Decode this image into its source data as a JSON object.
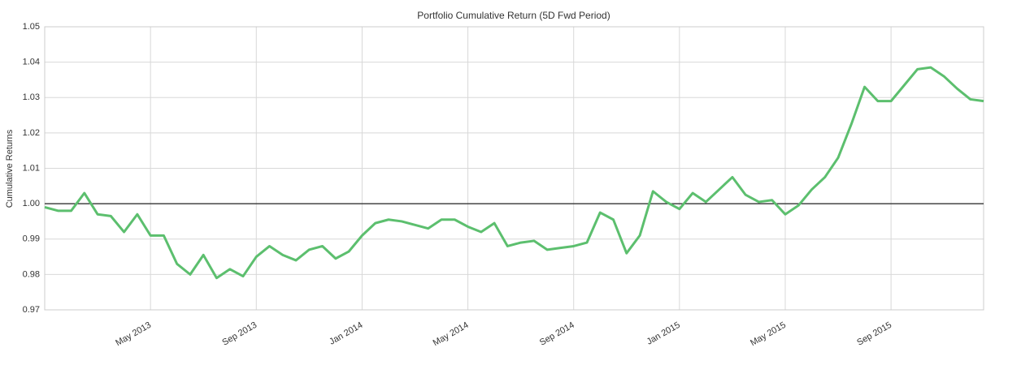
{
  "chart_data": {
    "type": "line",
    "title": "Portfolio Cumulative Return (5D Fwd Period)",
    "y_label": "Cumulative Returns",
    "categories": [
      "",
      null,
      null,
      null,
      null,
      null,
      null,
      null,
      "May 2013",
      null,
      null,
      null,
      null,
      null,
      null,
      null,
      "Sep 2013",
      null,
      null,
      null,
      null,
      null,
      null,
      null,
      "Jan 2014",
      null,
      null,
      null,
      null,
      null,
      null,
      null,
      "May 2014",
      null,
      null,
      null,
      null,
      null,
      null,
      null,
      "Sep 2014",
      null,
      null,
      null,
      null,
      null,
      null,
      null,
      "Jan 2015",
      null,
      null,
      null,
      null,
      null,
      null,
      null,
      "May 2015",
      null,
      null,
      null,
      null,
      null,
      null,
      null,
      "Sep 2015",
      null,
      null,
      null,
      null,
      null,
      null,
      null
    ],
    "series": [
      {
        "color": "#5cbf6e",
        "values": [
          0.999,
          0.998,
          0.998,
          1.003,
          0.997,
          0.9965,
          0.992,
          0.997,
          0.991,
          0.991,
          0.983,
          0.98,
          0.9855,
          0.979,
          0.9815,
          0.9795,
          0.985,
          0.988,
          0.9855,
          0.984,
          0.987,
          0.988,
          0.9845,
          0.9865,
          0.991,
          0.9945,
          0.9955,
          0.995,
          0.994,
          0.993,
          0.9955,
          0.9955,
          0.9935,
          0.992,
          0.9945,
          0.988,
          0.989,
          0.9895,
          0.987,
          0.9875,
          0.988,
          0.989,
          0.9975,
          0.9955,
          0.986,
          0.991,
          1.0035,
          1.0005,
          0.9985,
          1.003,
          1.0005,
          1.004,
          1.0075,
          1.0025,
          1.0005,
          1.001,
          0.997,
          0.9995,
          1.004,
          1.0075,
          1.013,
          1.0225,
          1.033,
          1.029,
          1.029,
          1.0335,
          1.038,
          1.0385,
          1.036,
          1.0325,
          1.0295,
          1.029
        ]
      }
    ],
    "ylim": [
      0.97,
      1.05
    ],
    "yticks": [
      0.97,
      0.98,
      0.99,
      {
        "value": 1,
        "label": "1.00"
      },
      1.01,
      1.02,
      1.03,
      1.04,
      1.05
    ],
    "reference_line": 1,
    "grid": true
  }
}
